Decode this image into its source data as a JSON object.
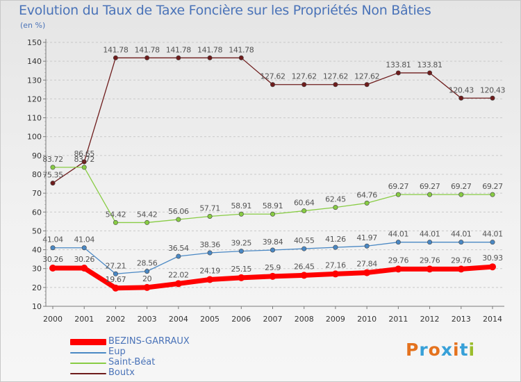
{
  "header": {
    "title": "Evolution du Taux de Taxe Foncière sur les Propriétés Non Bâties",
    "unit_label": "(en %)"
  },
  "logo": {
    "text": "Proxiti"
  },
  "colors": {
    "axis": "#7a7a7a",
    "grid": "#c9c9c9",
    "tick_text": "#333333",
    "value_text": "#555555",
    "title": "#4a73b8",
    "logo_letters": [
      "#e4721e",
      "#37a0d8",
      "#e4721e",
      "#37a0d8",
      "#e4721e",
      "#37a0d8",
      "#9abd2c"
    ]
  },
  "chart_data": {
    "type": "line",
    "title": "Evolution du Taux de Taxe Foncière sur les Propriétés Non Bâties",
    "ylabel": "(en %)",
    "xlabel": "",
    "x": [
      "2000",
      "2001",
      "2002",
      "2003",
      "2004",
      "2005",
      "2006",
      "2007",
      "2008",
      "2009",
      "2010",
      "2011",
      "2012",
      "2013",
      "2014"
    ],
    "ylim": [
      10,
      150
    ],
    "yticks": [
      10,
      20,
      30,
      40,
      50,
      60,
      70,
      80,
      90,
      100,
      110,
      120,
      130,
      140,
      150
    ],
    "grid": "horizontal dashed",
    "legend_position": "bottom-left",
    "series": [
      {
        "name": "BEZINS-GARRAUX",
        "color": "#ff0000",
        "values": [
          30.26,
          30.26,
          19.67,
          20,
          22.02,
          24.19,
          25.15,
          25.9,
          26.45,
          27.16,
          27.84,
          29.76,
          29.76,
          29.76,
          30.93
        ],
        "labels": [
          "30.26",
          "30.26",
          "19.67",
          "20",
          "22.02",
          "24.19",
          "25.15",
          "25.9",
          "26.45",
          "27.16",
          "27.84",
          "29.76",
          "29.76",
          "29.76",
          "30.93"
        ]
      },
      {
        "name": "Eup",
        "color": "#4a88c4",
        "values": [
          41.04,
          41.04,
          27.21,
          28.56,
          36.54,
          38.36,
          39.25,
          39.84,
          40.55,
          41.26,
          41.97,
          44.01,
          44.01,
          44.01,
          44.01
        ],
        "labels": [
          "41.04",
          "41.04",
          "27.21",
          "28.56",
          "36.54",
          "38.36",
          "39.25",
          "39.84",
          "40.55",
          "41.26",
          "41.97",
          "44.01",
          "44.01",
          "44.01",
          "44.01"
        ]
      },
      {
        "name": "Saint-Béat",
        "color": "#88cc44",
        "values": [
          83.72,
          83.72,
          54.42,
          54.42,
          56.06,
          57.71,
          58.91,
          58.91,
          60.64,
          62.45,
          64.76,
          69.27,
          69.27,
          69.27,
          69.27
        ],
        "labels": [
          "83.72",
          "83.72",
          "54.42",
          "54.42",
          "56.06",
          "57.71",
          "58.91",
          "58.91",
          "60.64",
          "62.45",
          "64.76",
          "69.27",
          "69.27",
          "69.27",
          "69.27"
        ]
      },
      {
        "name": "Boutx",
        "color": "#6e1c1c",
        "values": [
          75.35,
          86.65,
          141.78,
          141.78,
          141.78,
          141.78,
          141.78,
          127.62,
          127.62,
          127.62,
          127.62,
          133.81,
          133.81,
          120.43,
          120.43
        ],
        "labels": [
          "75.35",
          "86.65",
          "141.78",
          "141.78",
          "141.78",
          "141.78",
          "141.78",
          "127.62",
          "127.62",
          "127.62",
          "127.62",
          "133.81",
          "133.81",
          "120.43",
          "120.43"
        ]
      }
    ]
  }
}
